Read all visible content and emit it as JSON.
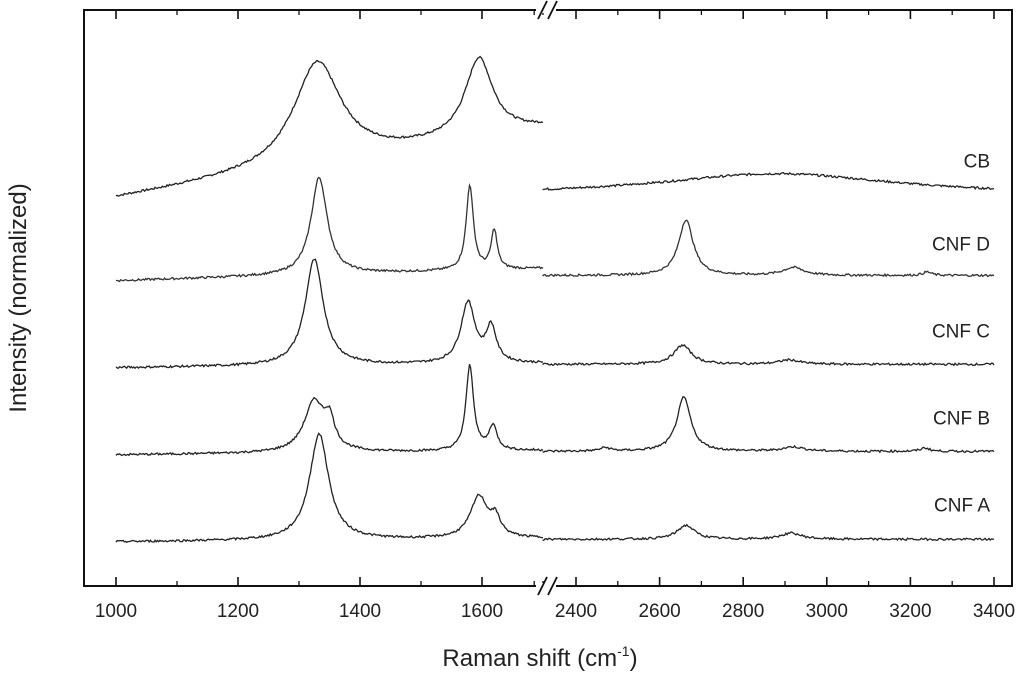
{
  "chart_data": {
    "type": "line",
    "title": "",
    "xlabel": "Raman shift (cm",
    "xlabel_sup": "-1",
    "xlabel_close": ")",
    "ylabel": "Intensity (normalized)",
    "axis_break": true,
    "segments": [
      {
        "xlim": [
          1000,
          1700
        ],
        "ticks": [
          1000,
          1200,
          1400,
          1600
        ]
      },
      {
        "xlim": [
          2300,
          3400
        ],
        "ticks": [
          2400,
          2600,
          2800,
          3000,
          3200,
          3400
        ]
      }
    ],
    "y_ticks_shown": false,
    "grid": false,
    "series": [
      {
        "name": "CB",
        "color": "#222222",
        "baseline": 4.1,
        "segment1": {
          "base_start": 0.0,
          "base_end": 0.8,
          "peaks": [
            [
              1330,
              1.18,
              95
            ],
            [
              1595,
              0.9,
              55
            ]
          ]
        },
        "segment2": {
          "base_start": 0.03,
          "base_end": 0.03,
          "peaks": [
            [
              2880,
              0.25,
              700
            ]
          ]
        }
      },
      {
        "name": "CNF D",
        "color": "#333333",
        "baseline": 3.15,
        "segment1": {
          "base_start": 0.0,
          "base_end": 0.14,
          "peaks": [
            [
              1333,
              1.12,
              32
            ],
            [
              1580,
              0.98,
              14
            ],
            [
              1620,
              0.45,
              12
            ]
          ]
        },
        "segment2": {
          "base_start": 0.06,
          "base_end": 0.06,
          "peaks": [
            [
              2663,
              0.64,
              42
            ],
            [
              2920,
              0.09,
              60
            ],
            [
              3240,
              0.04,
              25
            ]
          ]
        }
      },
      {
        "name": "CNF C",
        "color": "#222222",
        "baseline": 2.15,
        "segment1": {
          "base_start": 0.0,
          "base_end": 0.05,
          "peaks": [
            [
              1325,
              1.22,
              36
            ],
            [
              1577,
              0.7,
              28
            ],
            [
              1615,
              0.4,
              20
            ]
          ]
        },
        "segment2": {
          "base_start": 0.04,
          "base_end": 0.04,
          "peaks": [
            [
              2655,
              0.22,
              50
            ],
            [
              2910,
              0.05,
              60
            ]
          ]
        }
      },
      {
        "name": "CNF B",
        "color": "#222222",
        "baseline": 1.15,
        "segment1": {
          "base_start": 0.0,
          "base_end": 0.05,
          "peaks": [
            [
              1325,
              0.58,
              40
            ],
            [
              1350,
              0.3,
              20
            ],
            [
              1580,
              0.98,
              15
            ],
            [
              1618,
              0.28,
              16
            ]
          ]
        },
        "segment2": {
          "base_start": 0.04,
          "base_end": 0.04,
          "peaks": [
            [
              2658,
              0.62,
              40
            ],
            [
              2470,
              0.04,
              30
            ],
            [
              2920,
              0.05,
              60
            ],
            [
              3235,
              0.04,
              25
            ]
          ]
        }
      },
      {
        "name": "CNF A",
        "color": "#222222",
        "baseline": 0.15,
        "segment1": {
          "base_start": 0.0,
          "base_end": 0.04,
          "peaks": [
            [
              1333,
              1.22,
              38
            ],
            [
              1595,
              0.48,
              34
            ],
            [
              1622,
              0.2,
              20
            ]
          ]
        },
        "segment2": {
          "base_start": 0.03,
          "base_end": 0.03,
          "peaks": [
            [
              2663,
              0.16,
              50
            ],
            [
              2915,
              0.07,
              60
            ]
          ]
        }
      }
    ],
    "ylim": [
      0,
      5.8
    ]
  }
}
